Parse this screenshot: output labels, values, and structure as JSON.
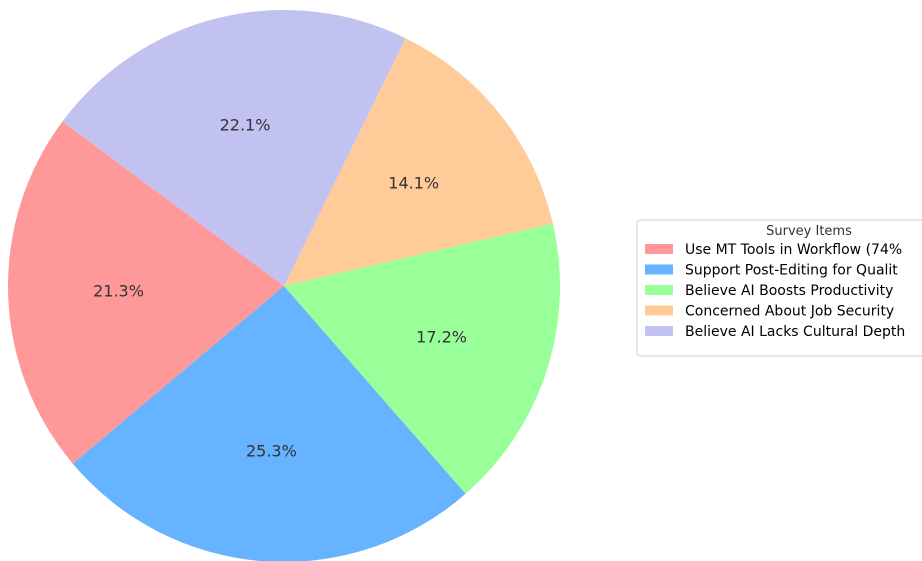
{
  "chart_data": {
    "type": "pie",
    "start_angle_deg": 90,
    "direction": "clockwise_from_top_anchor",
    "legend": {
      "title": "Survey Items",
      "placement": "right"
    },
    "slices": [
      {
        "label": "Use MT Tools in Workflow (74%",
        "value": 21.3,
        "pct_label": "21.3%",
        "color": "#ff9999"
      },
      {
        "label": "Support Post-Editing for Qualit",
        "value": 25.3,
        "pct_label": "25.3%",
        "color": "#66b3ff"
      },
      {
        "label": "Believe AI Boosts Productivity",
        "value": 17.2,
        "pct_label": "17.2%",
        "color": "#99ff99"
      },
      {
        "label": "Concerned About Job Security",
        "value": 14.1,
        "pct_label": "14.1%",
        "color": "#ffcc99"
      },
      {
        "label": "Believe AI Lacks Cultural Depth",
        "value": 22.1,
        "pct_label": "22.1%",
        "color": "#c2c2f0"
      }
    ]
  }
}
